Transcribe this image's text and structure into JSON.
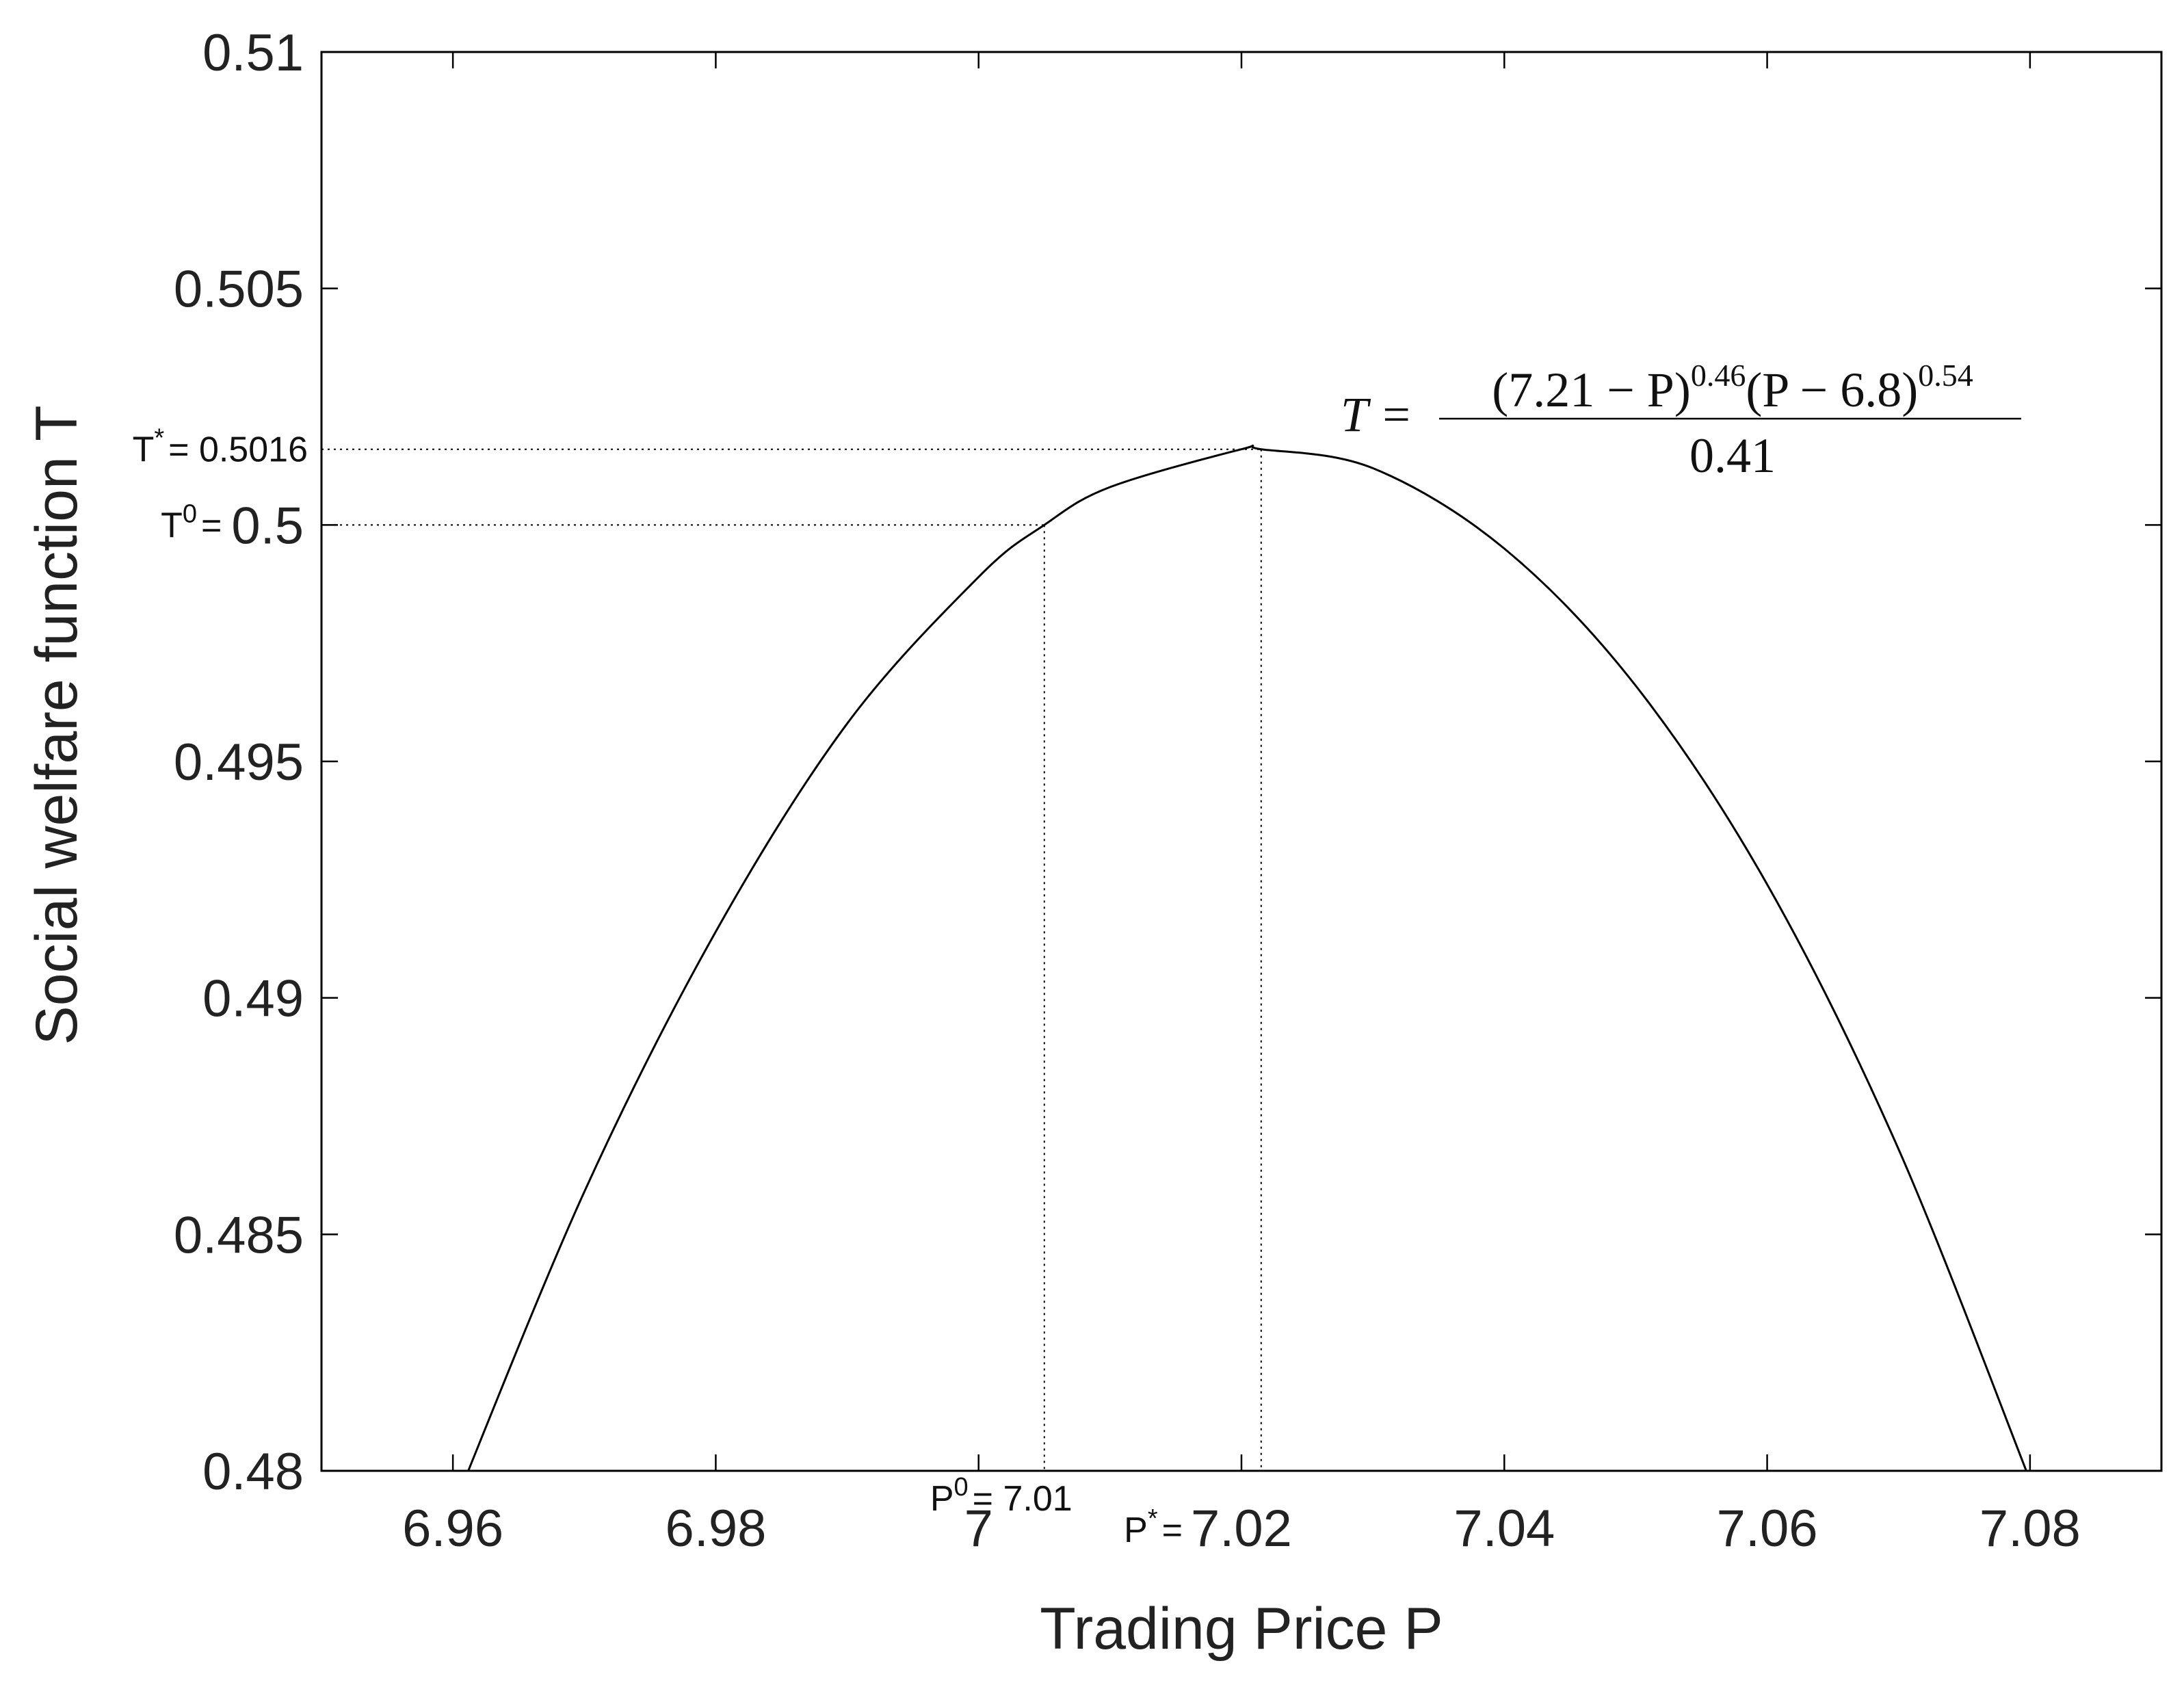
{
  "chart_data": {
    "type": "line",
    "x_label": "Trading Price P",
    "y_label": "Social welfare function T",
    "x": [
      6.96,
      6.97,
      6.98,
      6.99,
      7,
      7.005,
      7.01,
      7.02,
      7.0215,
      7.03,
      7.04,
      7.05,
      7.06,
      7.07,
      7.08
    ],
    "values": [
      0.4792,
      0.4859,
      0.4914,
      0.4958,
      0.4989,
      0.5,
      0.5008,
      0.5016,
      0.5016,
      0.5012,
      0.4995,
      0.4966,
      0.4924,
      0.4868,
      0.4798
    ],
    "color": "#000000",
    "xlim": [
      6.95,
      7.09
    ],
    "ylim": [
      0.48,
      0.51
    ],
    "xticks": [
      6.96,
      6.98,
      7,
      7.02,
      7.04,
      7.06,
      7.08
    ],
    "yticks": [
      0.48,
      0.485,
      0.49,
      0.495,
      0.5,
      0.505,
      0.51
    ],
    "grid": false,
    "optimum": {
      "x": 7.0215,
      "y": 0.5016,
      "y_symbol": "T",
      "y_sup": "*",
      "y_label": "= 0.5016",
      "x_symbol": "P",
      "x_sup": "*",
      "x_label": "="
    },
    "initial": {
      "x": 7.005,
      "y": 0.5,
      "y_symbol": "T",
      "y_sup": "0",
      "y_label": "=",
      "x_symbol": "P",
      "x_sup": "0",
      "x_label": "= 7.01"
    },
    "equation": {
      "lhs": "T =",
      "num_a": "(7.21 − P)",
      "exp_a": "0.46",
      "num_b": "(P − 6.8)",
      "exp_b": "0.54",
      "denominator": "0.41"
    }
  }
}
